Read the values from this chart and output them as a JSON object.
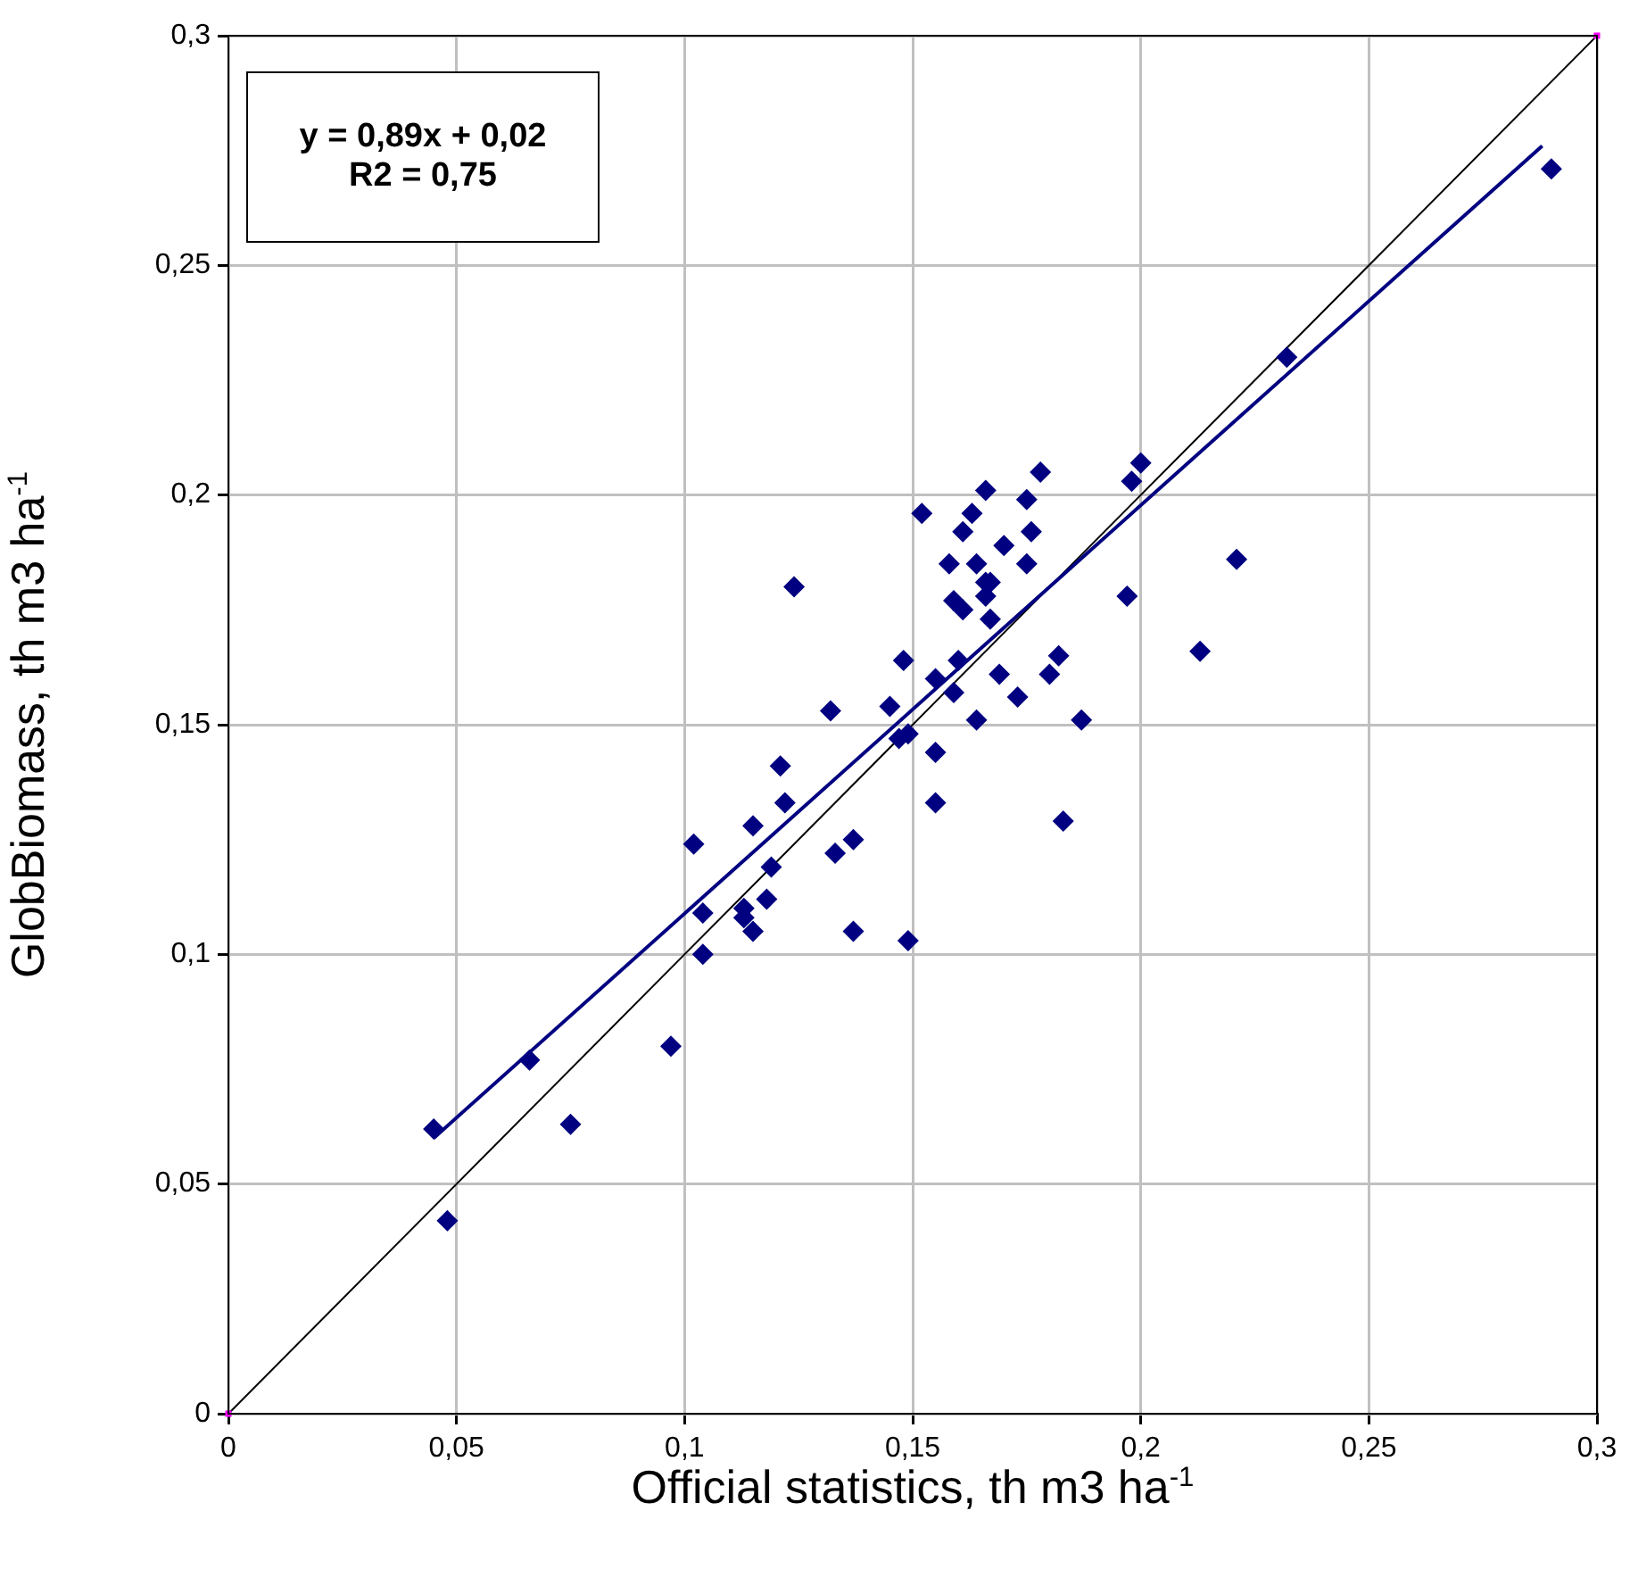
{
  "chart_data": {
    "type": "scatter",
    "xlabel": "Official statistics, th m3 ha$^{-1}$",
    "ylabel": "GlobBiomass, th m3 ha$^{-1}$",
    "xlim": [
      0,
      0.3
    ],
    "ylim": [
      0,
      0.3
    ],
    "xticks": [
      0,
      {
        "value": 0.05,
        "label": "0,05"
      },
      {
        "value": 0.1,
        "label": "0,1"
      },
      {
        "value": 0.15,
        "label": "0,15"
      },
      {
        "value": 0.2,
        "label": "0,2"
      },
      {
        "value": 0.25,
        "label": "0,25"
      },
      {
        "value": 0.3,
        "label": "0,3"
      }
    ],
    "yticks": [
      0,
      {
        "value": 0.05,
        "label": "0,05"
      },
      {
        "value": 0.1,
        "label": "0,1"
      },
      {
        "value": 0.15,
        "label": "0,15"
      },
      {
        "value": 0.2,
        "label": "0,2"
      },
      {
        "value": 0.25,
        "label": "0,25"
      },
      {
        "value": 0.3,
        "label": "0,3"
      }
    ],
    "grid": true,
    "legend": false,
    "annotations": [
      "y = 0,89x + 0,02",
      "R2 = 0,75"
    ],
    "series": [
      {
        "type": "line",
        "color": "#000000",
        "marker": "none",
        "x": [
          0,
          0.3
        ],
        "values": [
          0,
          0.3
        ]
      },
      {
        "type": "line",
        "color": "#000080",
        "marker": "none",
        "x": [
          0.045,
          0.288
        ],
        "values": [
          0.06,
          0.276
        ]
      },
      {
        "type": "scatter",
        "color": "#000080",
        "marker": "diamond",
        "x": [
          0.045,
          0.048,
          0.066,
          0.075,
          0.097,
          0.102,
          0.104,
          0.104,
          0.115,
          0.113,
          0.113,
          0.115,
          0.118,
          0.119,
          0.121,
          0.122,
          0.124,
          0.132,
          0.133,
          0.137,
          0.137,
          0.145,
          0.148,
          0.147,
          0.149,
          0.149,
          0.152,
          0.155,
          0.155,
          0.155,
          0.158,
          0.159,
          0.159,
          0.161,
          0.16,
          0.161,
          0.163,
          0.164,
          0.164,
          0.166,
          0.166,
          0.167,
          0.167,
          0.166,
          0.169,
          0.17,
          0.173,
          0.175,
          0.175,
          0.176,
          0.178,
          0.18,
          0.182,
          0.183,
          0.187,
          0.197,
          0.198,
          0.2,
          0.213,
          0.221,
          0.232,
          0.29
        ],
        "values": [
          0.062,
          0.042,
          0.077,
          0.063,
          0.08,
          0.124,
          0.109,
          0.1,
          0.128,
          0.11,
          0.108,
          0.105,
          0.112,
          0.119,
          0.141,
          0.133,
          0.18,
          0.153,
          0.122,
          0.125,
          0.105,
          0.154,
          0.164,
          0.147,
          0.148,
          0.103,
          0.196,
          0.16,
          0.144,
          0.133,
          0.185,
          0.157,
          0.177,
          0.175,
          0.164,
          0.192,
          0.196,
          0.151,
          0.185,
          0.201,
          0.181,
          0.173,
          0.181,
          0.178,
          0.161,
          0.189,
          0.156,
          0.185,
          0.199,
          0.192,
          0.205,
          0.161,
          0.165,
          0.129,
          0.151,
          0.178,
          0.203,
          0.207,
          0.166,
          0.186,
          0.23,
          0.271
        ]
      },
      {
        "type": "scatter",
        "color": "#ff00ff",
        "marker": "square",
        "x": [
          0,
          0.3
        ],
        "values": [
          0,
          0.3
        ]
      }
    ]
  }
}
